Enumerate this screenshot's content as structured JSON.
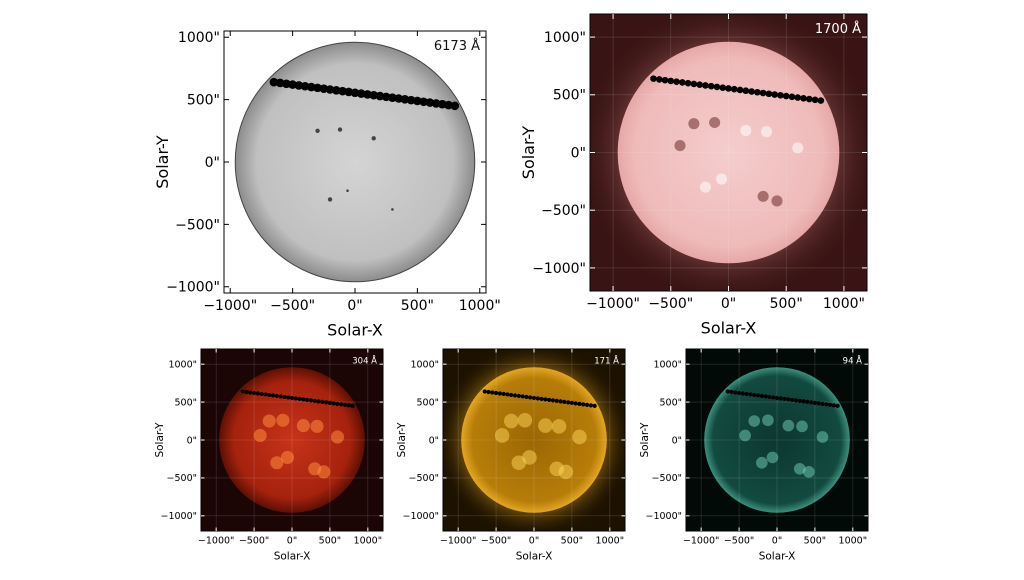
{
  "figure": {
    "panels": [
      {
        "id": "p6173",
        "wavelength_label": "6173 Å",
        "xlabel": "Solar-X",
        "ylabel": "Solar-Y",
        "xticks": [
          "−1000\"",
          "−500\"",
          "0\"",
          "500\"",
          "1000\""
        ],
        "yticks": [
          "1000\"",
          "500\"",
          "0\"",
          "−500\"",
          "−1000\""
        ],
        "colors": {
          "background": "#ffffff",
          "disk_center": "#d2d2d2",
          "disk_edge": "#8a8a8a",
          "label": "#111111",
          "tick": "#000000"
        }
      },
      {
        "id": "p1700",
        "wavelength_label": "1700 Å",
        "xlabel": "Solar-X",
        "ylabel": "Solar-Y",
        "xticks": [
          "−1000\"",
          "−500\"",
          "0\"",
          "500\"",
          "1000\""
        ],
        "yticks": [
          "1000\"",
          "500\"",
          "0\"",
          "−500\"",
          "−1000\""
        ],
        "colors": {
          "background": "#3a1414",
          "disk_center": "#f3c9c9",
          "disk_edge": "#e7a4a4",
          "label": "#ffffff",
          "tick": "#ffffff"
        }
      },
      {
        "id": "p304",
        "wavelength_label": "304 Å",
        "xlabel": "Solar-X",
        "ylabel": "Solar-Y",
        "xticks": [
          "−1000\"",
          "−500\"",
          "0\"",
          "500\"",
          "1000\""
        ],
        "yticks": [
          "1000\"",
          "500\"",
          "0\"",
          "−500\"",
          "−1000\""
        ],
        "colors": {
          "background": "#1b0505",
          "disk_center": "#c42c10",
          "disk_edge": "#6d1206",
          "label": "#ffffff",
          "tick": "#ffffff"
        }
      },
      {
        "id": "p171",
        "wavelength_label": "171 Å",
        "xlabel": "Solar-X",
        "ylabel": "Solar-Y",
        "xticks": [
          "−1000\"",
          "−500\"",
          "0\"",
          "500\"",
          "1000\""
        ],
        "yticks": [
          "1000\"",
          "500\"",
          "0\"",
          "−500\"",
          "−1000\""
        ],
        "colors": {
          "background": "#1d1200",
          "disk_center": "#b37a05",
          "disk_edge": "#d29614",
          "label": "#ffffff",
          "tick": "#ffffff"
        }
      },
      {
        "id": "p94",
        "wavelength_label": "94 Å",
        "xlabel": "Solar-X",
        "ylabel": "Solar-Y",
        "xticks": [
          "−1000\"",
          "−500\"",
          "0\"",
          "500\"",
          "1000\""
        ],
        "yticks": [
          "1000\"",
          "500\"",
          "0\"",
          "−500\"",
          "−1000\""
        ],
        "colors": {
          "background": "#020a08",
          "disk_center": "#0e3b33",
          "disk_edge": "#2f7f6d",
          "label": "#ffffff",
          "tick": "#ffffff"
        }
      }
    ],
    "axis_range_arcsec": [
      -1200,
      1200
    ],
    "solar_radius_arcsec": 960,
    "transit_track": {
      "start": [
        -650,
        640
      ],
      "end": [
        800,
        450
      ],
      "count": 30
    }
  }
}
